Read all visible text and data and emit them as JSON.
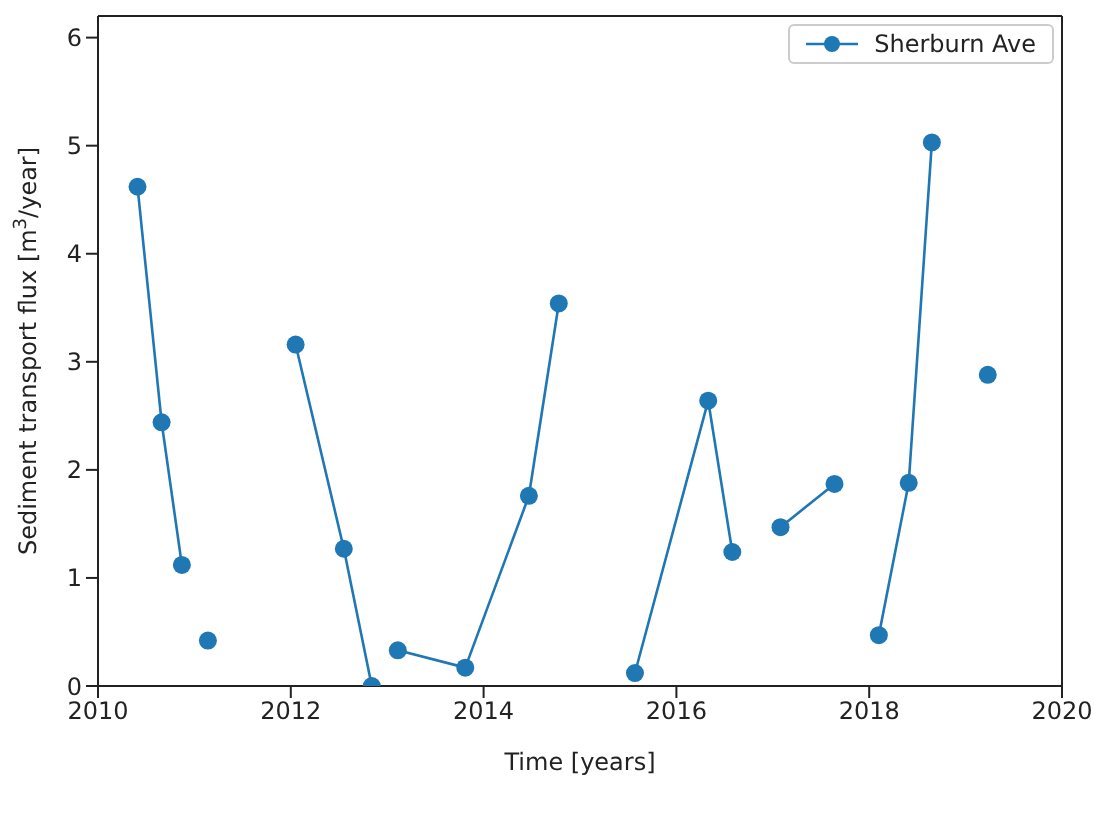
{
  "chart_data": {
    "type": "line",
    "xlabel": "Time [years]",
    "ylabel": "Sediment transport flux [m$^{3}$/year]",
    "x": [
      2010.41,
      2010.66,
      2010.87,
      2011.0,
      2011.14,
      2011.6,
      2012.05,
      2012.55,
      2012.84,
      2012.98,
      2013.11,
      2013.81,
      2014.47,
      2014.78,
      2015.2,
      2015.57,
      2016.33,
      2016.58,
      2016.8,
      2017.08,
      2017.64,
      2017.9,
      2018.1,
      2018.41,
      2018.65,
      2018.9,
      2019.23
    ],
    "series": [
      {
        "name": "Sherburn Ave",
        "color": "#1f77b4",
        "values": [
          4.62,
          2.44,
          1.12,
          null,
          0.42,
          null,
          3.16,
          1.27,
          0,
          null,
          0.33,
          0.17,
          1.76,
          3.54,
          null,
          0.12,
          2.64,
          1.24,
          null,
          1.47,
          1.87,
          null,
          0.47,
          1.88,
          5.03,
          null,
          2.88
        ]
      }
    ],
    "xlim": [
      2010,
      2020
    ],
    "xticks": [
      2010,
      2012,
      2014,
      2016,
      2018,
      2020
    ],
    "ylim": [
      0,
      6.2
    ],
    "yticks": [
      0,
      1,
      2,
      3,
      4,
      5,
      6
    ],
    "grid": false,
    "legend": "top right",
    "marker": "circle",
    "line_style": "solid"
  }
}
